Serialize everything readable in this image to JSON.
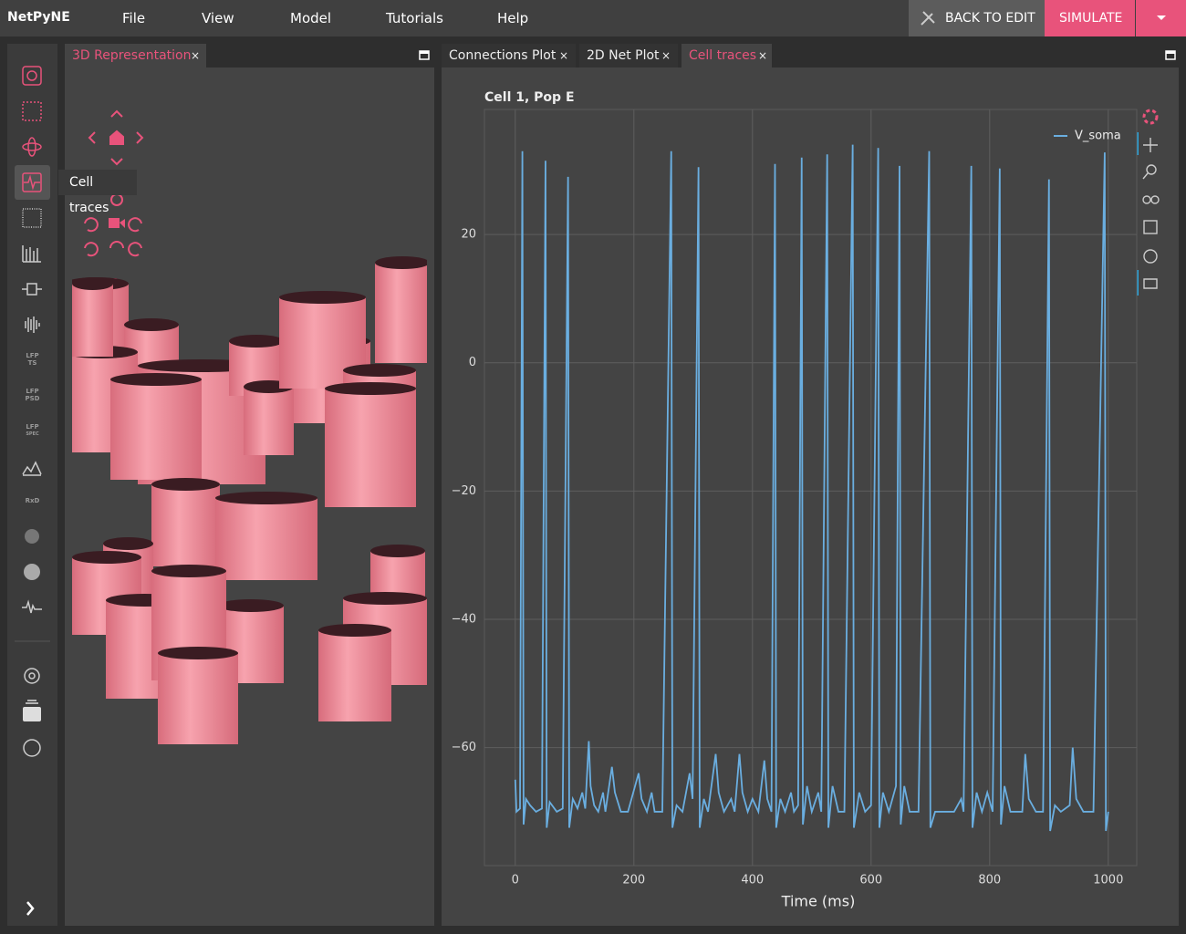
{
  "app": {
    "name": "NetPyNE",
    "menu": [
      "File",
      "View",
      "Model",
      "Tutorials",
      "Help"
    ],
    "back_button": "BACK TO EDIT",
    "simulate_button": "SIMULATE"
  },
  "sidebar": {
    "labels": [
      {
        "top": "LFP",
        "bottom": "TS"
      },
      {
        "top": "LFP",
        "bottom": "PSD"
      },
      {
        "top": "LFP",
        "bottom": "SPEC"
      },
      {
        "top": "RxD"
      }
    ],
    "tooltip": "Cell traces"
  },
  "left_tabs": [
    "3D Representation"
  ],
  "right_tabs": [
    "Connections Plot",
    "2D Net Plot",
    "Cell traces"
  ],
  "chart_data": {
    "type": "line",
    "title": "Cell 1, Pop E",
    "x_label": "Time (ms)",
    "xlim": [
      -52,
      1048
    ],
    "ylim": [
      -78.4,
      39.5
    ],
    "xticks": [
      0,
      200,
      400,
      600,
      800,
      1000
    ],
    "yticks": [
      {
        "value": -60,
        "label": "−60"
      },
      {
        "value": -40,
        "label": "−40"
      },
      {
        "value": -20,
        "label": "−20"
      },
      0,
      20
    ],
    "grid": true,
    "legend": "upper right",
    "series": [
      {
        "name": "V_soma",
        "color": "#6aaee0",
        "x": [
          0,
          2,
          8,
          12,
          14,
          18,
          25,
          35,
          45,
          51,
          53,
          58,
          70,
          80,
          89,
          91,
          97,
          105,
          113,
          118,
          124,
          127,
          133,
          140,
          148,
          152,
          163,
          168,
          178,
          190,
          208,
          213,
          222,
          230,
          235,
          248,
          263,
          265,
          272,
          282,
          294,
          299,
          309,
          311,
          318,
          325,
          338,
          343,
          352,
          364,
          370,
          378,
          383,
          392,
          400,
          410,
          420,
          425,
          432,
          438,
          440,
          447,
          455,
          465,
          470,
          477,
          483,
          485,
          492,
          500,
          511,
          516,
          526,
          528,
          535,
          545,
          555,
          569,
          571,
          580,
          590,
          600,
          612,
          614,
          620,
          630,
          642,
          648,
          650,
          656,
          665,
          680,
          698,
          700,
          708,
          725,
          740,
          752,
          756,
          769,
          771,
          778,
          787,
          796,
          805,
          817,
          819,
          825,
          835,
          855,
          860,
          866,
          878,
          890,
          900,
          902,
          910,
          920,
          935,
          940,
          946,
          958,
          975,
          994,
          996,
          1000
        ],
        "values": [
          -65,
          -70,
          -69.5,
          33,
          -72,
          -68,
          -69,
          -70,
          -69.5,
          31.5,
          -72.5,
          -68.5,
          -70,
          -69.5,
          29,
          -72.5,
          -68,
          -69.5,
          -67,
          -69.5,
          -59,
          -66,
          -69,
          -70,
          -67,
          -70,
          -63,
          -67,
          -70,
          -70,
          -64,
          -68,
          -70,
          -67,
          -70,
          -70,
          33,
          -72.5,
          -69,
          -70,
          -64,
          -68,
          30.5,
          -72.5,
          -68,
          -70,
          -61,
          -67,
          -70,
          -68,
          -70,
          -61,
          -67,
          -70,
          -68,
          -70,
          -62,
          -68,
          -70,
          31,
          -72.5,
          -68,
          -70,
          -67,
          -70,
          -69,
          32,
          -72,
          -66,
          -70,
          -67,
          -70,
          32.5,
          -72.5,
          -66,
          -70,
          -70,
          34,
          -72.5,
          -67,
          -70,
          -69,
          33.5,
          -72.5,
          -67,
          -70,
          -66,
          30.7,
          -72,
          -66,
          -70,
          -70,
          33,
          -72.5,
          -70,
          -70,
          -70,
          -68,
          -70,
          30.7,
          -72.5,
          -67,
          -70,
          -67,
          -70,
          30.3,
          -72,
          -66,
          -70,
          -70,
          -61,
          -68,
          -70,
          -70,
          28.6,
          -73,
          -69,
          -70,
          -69,
          -60,
          -68,
          -70,
          -70,
          32.8,
          -73,
          -70
        ]
      }
    ]
  }
}
